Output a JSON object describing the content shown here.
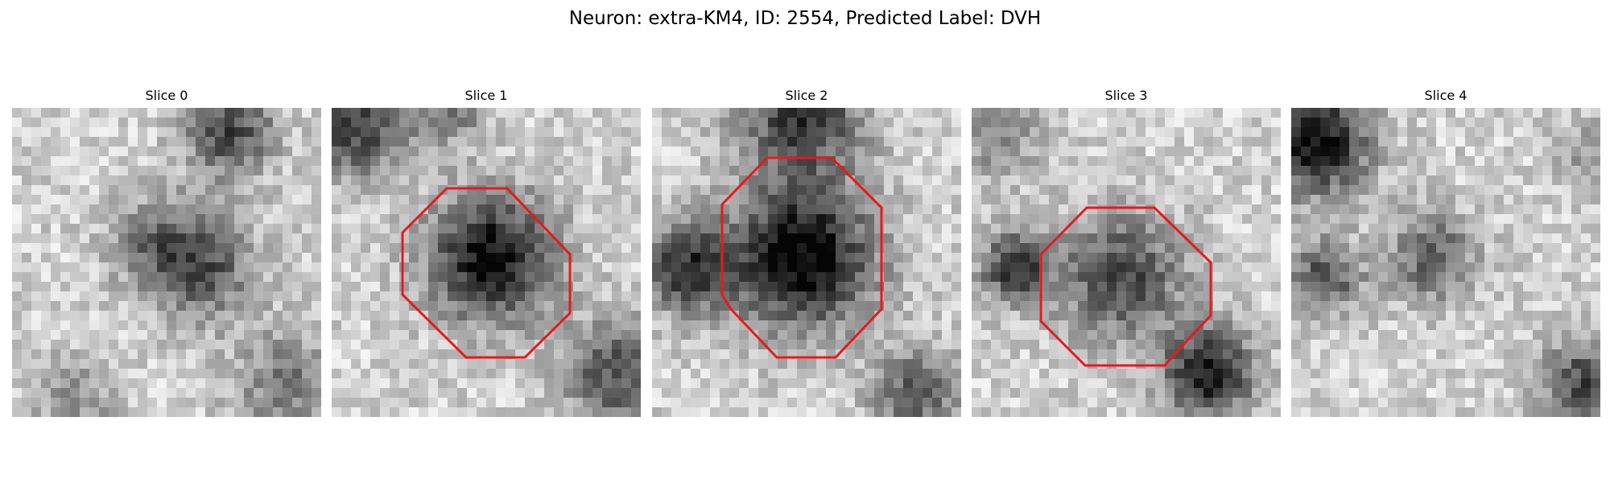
{
  "figure": {
    "title": "Neuron: extra-KM4, ID: 2554, Predicted Label: DVH"
  },
  "slices": [
    {
      "title": "Slice 0",
      "roi_visible": false
    },
    {
      "title": "Slice 1",
      "roi_visible": true
    },
    {
      "title": "Slice 2",
      "roi_visible": true
    },
    {
      "title": "Slice 3",
      "roi_visible": true
    },
    {
      "title": "Slice 4",
      "roi_visible": false
    }
  ],
  "style": {
    "roi_color": "#e8191c",
    "colormap": "grayscale"
  }
}
